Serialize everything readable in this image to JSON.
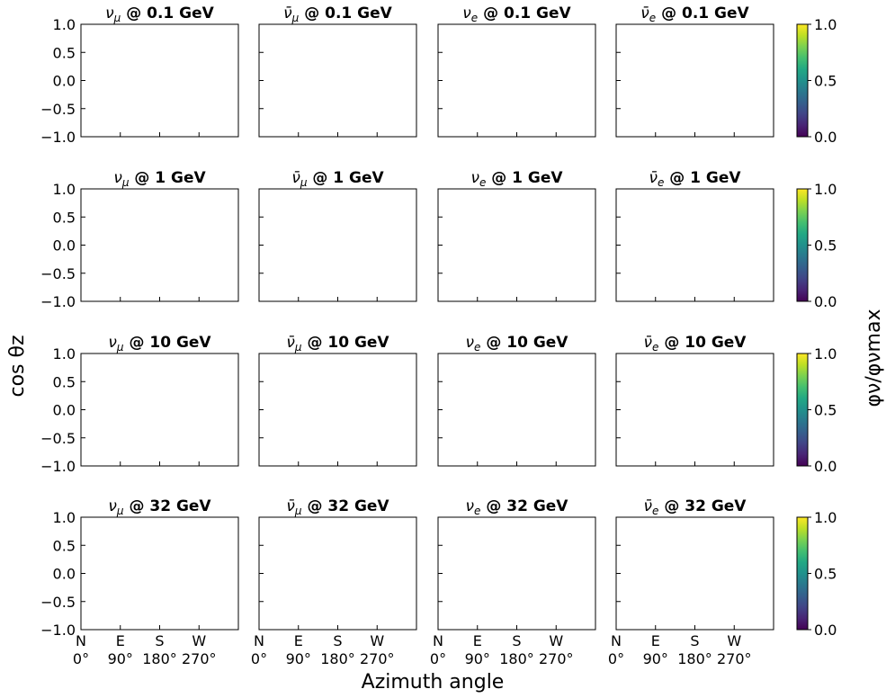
{
  "chart_data": {
    "type": "heatmap",
    "ylabel": "cos θz",
    "xlabel": "Azimuth angle",
    "colorbar_label": "φν/φνmax",
    "xlim": [
      0,
      360
    ],
    "ylim": [
      -1.0,
      1.0
    ],
    "colormap": "viridis",
    "clim": [
      0.0,
      1.0
    ],
    "y_ticks": [
      "1.0",
      "0.5",
      "0.0",
      "−0.5",
      "−1.0"
    ],
    "x_ticks": [
      {
        "top": "N",
        "bottom": "0°"
      },
      {
        "top": "E",
        "bottom": "90°"
      },
      {
        "top": "S",
        "bottom": "180°"
      },
      {
        "top": "W",
        "bottom": "270°"
      }
    ],
    "colorbar_ticks": [
      "1.0",
      "0.5",
      "0.0"
    ],
    "panels": [
      {
        "row": 0,
        "col": 0,
        "flavor": "numu",
        "energy": "0.1",
        "values": []
      },
      {
        "row": 0,
        "col": 1,
        "flavor": "numubar",
        "energy": "0.1",
        "values": []
      },
      {
        "row": 0,
        "col": 2,
        "flavor": "nue",
        "energy": "0.1",
        "values": []
      },
      {
        "row": 0,
        "col": 3,
        "flavor": "nuebar",
        "energy": "0.1",
        "values": []
      },
      {
        "row": 1,
        "col": 0,
        "flavor": "numu",
        "energy": "1",
        "values": []
      },
      {
        "row": 1,
        "col": 1,
        "flavor": "numubar",
        "energy": "1",
        "values": []
      },
      {
        "row": 1,
        "col": 2,
        "flavor": "nue",
        "energy": "1",
        "values": []
      },
      {
        "row": 1,
        "col": 3,
        "flavor": "nuebar",
        "energy": "1",
        "values": []
      },
      {
        "row": 2,
        "col": 0,
        "flavor": "numu",
        "energy": "10",
        "values": []
      },
      {
        "row": 2,
        "col": 1,
        "flavor": "numubar",
        "energy": "10",
        "values": []
      },
      {
        "row": 2,
        "col": 2,
        "flavor": "nue",
        "energy": "10",
        "values": []
      },
      {
        "row": 2,
        "col": 3,
        "flavor": "nuebar",
        "energy": "10",
        "values": []
      },
      {
        "row": 3,
        "col": 0,
        "flavor": "numu",
        "energy": "32",
        "values": []
      },
      {
        "row": 3,
        "col": 1,
        "flavor": "numubar",
        "energy": "32",
        "values": []
      },
      {
        "row": 3,
        "col": 2,
        "flavor": "nue",
        "energy": "32",
        "values": []
      },
      {
        "row": 3,
        "col": 3,
        "flavor": "nuebar",
        "energy": "32",
        "values": []
      }
    ]
  }
}
